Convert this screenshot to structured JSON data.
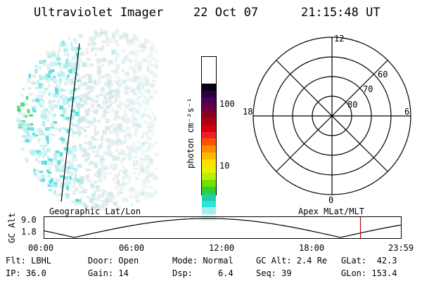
{
  "header": {
    "title": "Ultraviolet Imager",
    "date": "22 Oct 07",
    "time": "21:15:48 UT"
  },
  "colorbar": {
    "label": "photon cm⁻²s⁻¹",
    "ticks": [
      "100",
      "10"
    ],
    "colors": [
      "#000010",
      "#2a0040",
      "#4a0060",
      "#6a0040",
      "#8a0020",
      "#b00010",
      "#d00010",
      "#f02020",
      "#ff5000",
      "#ff8c00",
      "#ffb800",
      "#ffe000",
      "#e8f000",
      "#b8f000",
      "#70e000",
      "#30d030",
      "#20d0a0",
      "#30e0e0",
      "#a0f0f0",
      "#e8f8f8"
    ]
  },
  "polar": {
    "labels_clock": [
      "12",
      "6",
      "0",
      "18"
    ],
    "labels_lat": [
      "60",
      "70",
      "80"
    ]
  },
  "timeline": {
    "geo_label": "Geographic Lat/Lon",
    "apex_label": "Apex MLat/MLT",
    "yaxis_label": "GC Alt",
    "y_ticks": [
      "9.0",
      "1.8"
    ],
    "x_ticks": [
      "00:00",
      "06:00",
      "12:00",
      "18:00",
      "23:59"
    ],
    "marker_time_hours": 21.26,
    "marker_color": "#cc0000"
  },
  "footer": {
    "filter": "Flt: LBHL",
    "ip": "IP: 36.0",
    "door": "Door: Open",
    "gain": "Gain: 14",
    "mode": "Mode: Normal",
    "dsp": "Dsp:     6.4",
    "gcalt": "GC Alt: 2.4 Re",
    "seq": "Seq: 39",
    "glat": "GLat:  42.3",
    "glon": "GLon: 153.4"
  }
}
